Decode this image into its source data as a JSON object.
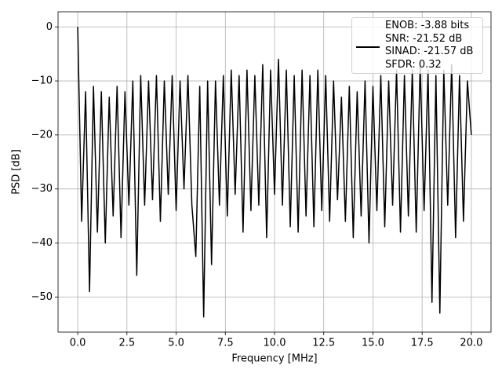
{
  "chart_data": {
    "type": "line",
    "xlabel": "Frequency [MHz]",
    "ylabel": "PSD [dB]",
    "x": [
      0.0,
      0.2,
      0.4,
      0.6,
      0.8,
      1.0,
      1.2,
      1.4,
      1.6,
      1.8,
      2.0,
      2.2,
      2.4,
      2.6,
      2.8,
      3.0,
      3.2,
      3.4,
      3.6,
      3.8,
      4.0,
      4.2,
      4.4,
      4.6,
      4.8,
      5.0,
      5.2,
      5.4,
      5.6,
      5.8,
      6.0,
      6.2,
      6.4,
      6.6,
      6.8,
      7.0,
      7.2,
      7.4,
      7.6,
      7.8,
      8.0,
      8.2,
      8.4,
      8.6,
      8.8,
      9.0,
      9.2,
      9.4,
      9.6,
      9.8,
      10.0,
      10.2,
      10.4,
      10.6,
      10.8,
      11.0,
      11.2,
      11.4,
      11.6,
      11.8,
      12.0,
      12.2,
      12.4,
      12.6,
      12.8,
      13.0,
      13.2,
      13.4,
      13.6,
      13.8,
      14.0,
      14.2,
      14.4,
      14.6,
      14.8,
      15.0,
      15.2,
      15.4,
      15.6,
      15.8,
      16.0,
      16.2,
      16.4,
      16.6,
      16.8,
      17.0,
      17.2,
      17.4,
      17.6,
      17.8,
      18.0,
      18.2,
      18.4,
      18.6,
      18.8,
      19.0,
      19.2,
      19.4,
      19.6,
      19.8,
      20.0
    ],
    "series": [
      {
        "name": "ENOB: -3.88 bits\nSNR: -21.52 dB\nSINAD: -21.57 dB\nSFDR: 0.32",
        "color": "#000000",
        "values": [
          0,
          -36,
          -12,
          -49,
          -11,
          -38,
          -12,
          -40,
          -13,
          -35,
          -11,
          -39,
          -12,
          -33,
          -10,
          -46,
          -9,
          -33,
          -10,
          -32,
          -9,
          -36,
          -10,
          -31,
          -9,
          -34,
          -10,
          -30,
          -9,
          -33,
          -42.5,
          -11,
          -53.7,
          -10,
          -44,
          -10,
          -33,
          -9,
          -35,
          -8,
          -31,
          -9,
          -38,
          -8,
          -34,
          -9,
          -33,
          -7,
          -39,
          -8,
          -31,
          -6,
          -33,
          -8,
          -37,
          -9,
          -38,
          -8,
          -35,
          -9,
          -37,
          -8,
          -34,
          -9,
          -36,
          -10,
          -32,
          -13,
          -36,
          -11,
          -39,
          -12,
          -35,
          -10,
          -40,
          -11,
          -34,
          -9,
          -37,
          -10,
          -33,
          -8,
          -38,
          -9,
          -35,
          -8,
          -38,
          -7,
          -34,
          -8,
          -51,
          -9,
          -53,
          -8,
          -33,
          -7,
          -39,
          -9,
          -36,
          -10,
          -20
        ]
      }
    ],
    "xlim": [
      -1.0,
      21.0
    ],
    "ylim": [
      -56.5,
      2.8
    ],
    "xticks": [
      {
        "value": 0,
        "label": "0.0"
      },
      2.5,
      {
        "value": 5,
        "label": "5.0"
      },
      7.5,
      {
        "value": 10,
        "label": "10.0"
      },
      12.5,
      {
        "value": 15,
        "label": "15.0"
      },
      17.5,
      {
        "value": 20,
        "label": "20.0"
      }
    ],
    "yticks": [
      0,
      {
        "value": -10,
        "label": "−10"
      },
      {
        "value": -20,
        "label": "−20"
      },
      {
        "value": -30,
        "label": "−30"
      },
      {
        "value": -40,
        "label": "−40"
      },
      {
        "value": -50,
        "label": "−50"
      }
    ],
    "grid": true,
    "legend": "upper right"
  }
}
